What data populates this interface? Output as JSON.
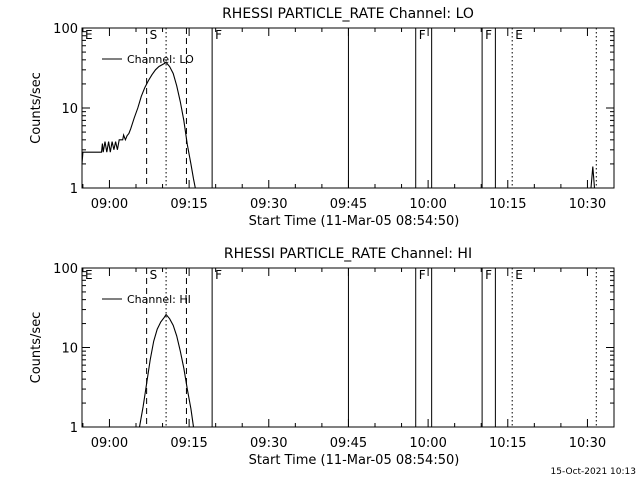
{
  "footer_date": "15-Oct-2021 10:13",
  "chart_data": [
    {
      "type": "line",
      "title": "RHESSI PARTICLE_RATE Channel: LO",
      "xlabel": "Start Time (11-Mar-05 08:54:50)",
      "ylabel": "Counts/sec",
      "yscale": "log",
      "ylim": [
        1,
        100
      ],
      "xlim": [
        "08:54:50",
        "10:35:00"
      ],
      "xticks": [
        "09:00",
        "09:15",
        "09:30",
        "09:45",
        "10:00",
        "10:15",
        "10:30"
      ],
      "yticks": [
        "1",
        "10",
        "100"
      ],
      "legend": {
        "label": "Channel: LO",
        "position": "top-left"
      },
      "markers": [
        {
          "label": "E",
          "time": "08:54:50",
          "style": "none"
        },
        {
          "label": "S",
          "time": "09:07:00",
          "style": "dashed"
        },
        {
          "label": "",
          "time": "09:10:40",
          "style": "dotted"
        },
        {
          "label": "",
          "time": "09:14:30",
          "style": "dashed"
        },
        {
          "label": "F",
          "time": "09:19:20",
          "style": "solid"
        },
        {
          "label": "",
          "time": "09:45:00",
          "style": "solid"
        },
        {
          "label": "F",
          "time": "09:57:40",
          "style": "solid"
        },
        {
          "label": "",
          "time": "10:00:40",
          "style": "solid"
        },
        {
          "label": "F",
          "time": "10:10:10",
          "style": "solid"
        },
        {
          "label": "",
          "time": "10:12:40",
          "style": "solid"
        },
        {
          "label": "E",
          "time": "10:15:50",
          "style": "dotted"
        },
        {
          "label": "",
          "time": "10:31:40",
          "style": "dotted"
        }
      ],
      "series": [
        {
          "name": "Channel: LO",
          "points": [
            [
              "08:54:50",
              2.0
            ],
            [
              "08:55:00",
              2.8
            ],
            [
              "08:58:30",
              2.8
            ],
            [
              "08:58:40",
              3.6
            ],
            [
              "08:58:50",
              2.8
            ],
            [
              "08:59:10",
              3.8
            ],
            [
              "08:59:30",
              2.8
            ],
            [
              "08:59:50",
              3.8
            ],
            [
              "09:00:10",
              2.8
            ],
            [
              "09:00:30",
              3.8
            ],
            [
              "09:00:50",
              3.0
            ],
            [
              "09:01:10",
              3.8
            ],
            [
              "09:01:30",
              3.0
            ],
            [
              "09:01:50",
              4.0
            ],
            [
              "09:02:30",
              4.0
            ],
            [
              "09:02:40",
              4.6
            ],
            [
              "09:03:00",
              4.0
            ],
            [
              "09:03:20",
              4.5
            ],
            [
              "09:03:40",
              4.8
            ],
            [
              "09:04:00",
              5.5
            ],
            [
              "09:04:40",
              7.5
            ],
            [
              "09:05:20",
              10.0
            ],
            [
              "09:06:00",
              14.0
            ],
            [
              "09:06:40",
              18.0
            ],
            [
              "09:07:20",
              22.0
            ],
            [
              "09:08:00",
              26.0
            ],
            [
              "09:08:40",
              30.0
            ],
            [
              "09:09:20",
              33.0
            ],
            [
              "09:10:00",
              35.0
            ],
            [
              "09:10:40",
              37.0
            ],
            [
              "09:11:20",
              33.0
            ],
            [
              "09:12:00",
              27.0
            ],
            [
              "09:12:40",
              19.0
            ],
            [
              "09:13:20",
              12.0
            ],
            [
              "09:14:00",
              7.0
            ],
            [
              "09:14:40",
              3.5
            ],
            [
              "09:15:20",
              2.0
            ],
            [
              "09:15:50",
              1.3
            ],
            [
              "09:16:10",
              1.0
            ],
            [
              "10:30:40",
              1.0
            ],
            [
              "10:31:00",
              1.85
            ],
            [
              "10:31:20",
              1.0
            ]
          ]
        }
      ]
    },
    {
      "type": "line",
      "title": "RHESSI PARTICLE_RATE Channel: HI",
      "xlabel": "Start Time (11-Mar-05 08:54:50)",
      "ylabel": "Counts/sec",
      "yscale": "log",
      "ylim": [
        1,
        100
      ],
      "xlim": [
        "08:54:50",
        "10:35:00"
      ],
      "xticks": [
        "09:00",
        "09:15",
        "09:30",
        "09:45",
        "10:00",
        "10:15",
        "10:30"
      ],
      "yticks": [
        "1",
        "10",
        "100"
      ],
      "legend": {
        "label": "Channel: HI",
        "position": "top-left"
      },
      "markers": [
        {
          "label": "E",
          "time": "08:54:50",
          "style": "none"
        },
        {
          "label": "S",
          "time": "09:07:00",
          "style": "dashed"
        },
        {
          "label": "",
          "time": "09:10:40",
          "style": "dotted"
        },
        {
          "label": "",
          "time": "09:14:30",
          "style": "dashed"
        },
        {
          "label": "F",
          "time": "09:19:20",
          "style": "solid"
        },
        {
          "label": "",
          "time": "09:45:00",
          "style": "solid"
        },
        {
          "label": "F",
          "time": "09:57:40",
          "style": "solid"
        },
        {
          "label": "",
          "time": "10:00:40",
          "style": "solid"
        },
        {
          "label": "F",
          "time": "10:10:10",
          "style": "solid"
        },
        {
          "label": "",
          "time": "10:12:40",
          "style": "solid"
        },
        {
          "label": "E",
          "time": "10:15:50",
          "style": "dotted"
        },
        {
          "label": "",
          "time": "10:31:40",
          "style": "dotted"
        }
      ],
      "series": [
        {
          "name": "Channel: HI",
          "points": [
            [
              "09:05:40",
              1.0
            ],
            [
              "09:06:20",
              1.8
            ],
            [
              "09:07:00",
              3.5
            ],
            [
              "09:07:40",
              7.0
            ],
            [
              "09:08:20",
              12.0
            ],
            [
              "09:09:00",
              17.0
            ],
            [
              "09:09:40",
              21.0
            ],
            [
              "09:10:20",
              24.0
            ],
            [
              "09:10:40",
              26.0
            ],
            [
              "09:11:20",
              23.0
            ],
            [
              "09:12:00",
              19.0
            ],
            [
              "09:12:40",
              14.0
            ],
            [
              "09:13:20",
              9.0
            ],
            [
              "09:14:00",
              5.5
            ],
            [
              "09:14:40",
              3.0
            ],
            [
              "09:15:20",
              1.7
            ],
            [
              "09:15:50",
              1.0
            ]
          ]
        }
      ]
    }
  ]
}
